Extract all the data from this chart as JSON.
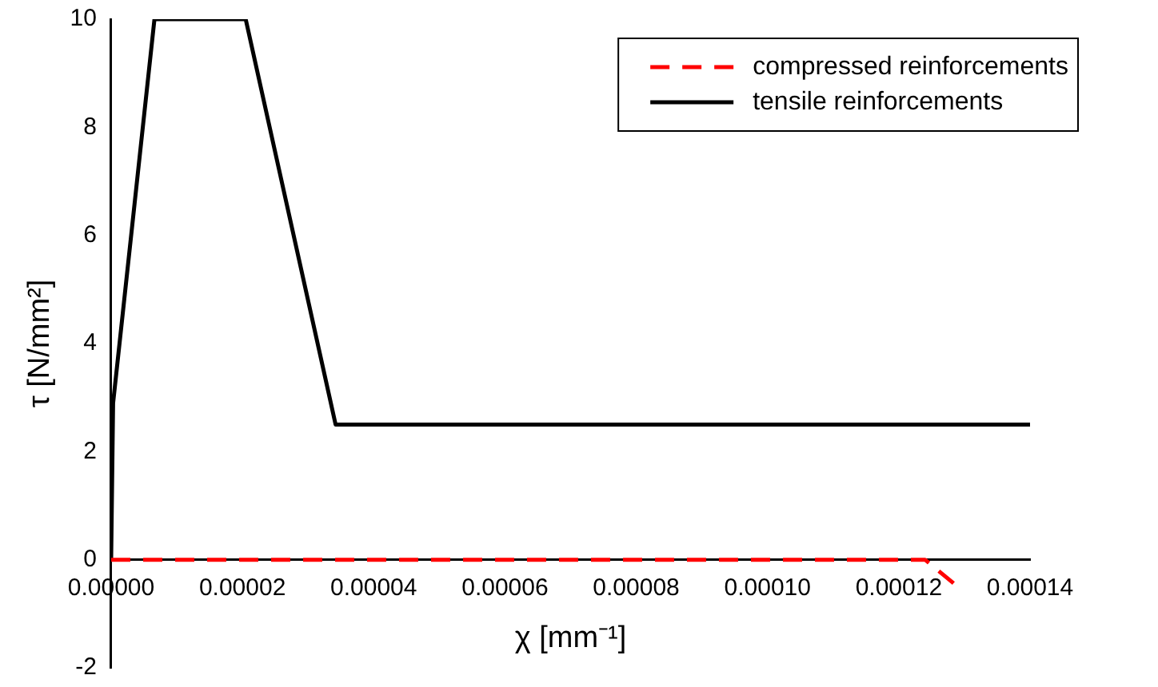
{
  "chart_data": {
    "type": "line",
    "xlabel": "χ [mm⁻¹]",
    "ylabel": "τ [N/mm²]",
    "xlim": [
      0,
      0.00014
    ],
    "ylim": [
      -2,
      10
    ],
    "xticks": [
      {
        "value": 0,
        "label": "0.00000"
      },
      {
        "value": 2e-05,
        "label": "0.00002"
      },
      {
        "value": 4e-05,
        "label": "0.00004"
      },
      {
        "value": 6e-05,
        "label": "0.00006"
      },
      {
        "value": 8e-05,
        "label": "0.00008"
      },
      {
        "value": 0.0001,
        "label": "0.00010"
      },
      {
        "value": 0.00012,
        "label": "0.00012"
      },
      {
        "value": 0.00014,
        "label": "0.00014"
      }
    ],
    "yticks": [
      -2,
      0,
      2,
      4,
      6,
      8,
      10
    ],
    "grid": false,
    "legend": "top right",
    "marker": "none",
    "series": [
      {
        "name": "compressed reinforcements",
        "color": "#ff0000",
        "line_style": "dashed",
        "x": [
          0,
          0.000124,
          0.0001265,
          0.000129
        ],
        "values": [
          0,
          0,
          -0.25,
          -0.5
        ]
      },
      {
        "name": "tensile reinforcements",
        "color": "#000000",
        "line_style": "solid",
        "x": [
          0,
          3e-07,
          6.6e-06,
          2.05e-05,
          3.42e-05,
          0.00014
        ],
        "values": [
          0,
          2.9,
          10,
          10,
          2.5,
          2.5
        ]
      }
    ]
  }
}
